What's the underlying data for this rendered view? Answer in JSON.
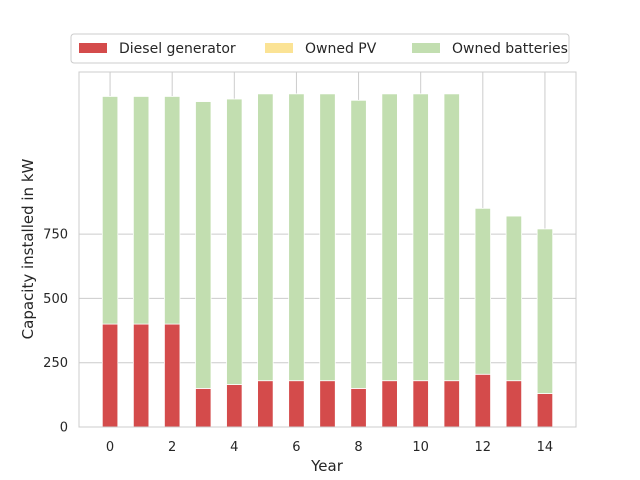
{
  "chart_data": {
    "type": "bar",
    "stacked": true,
    "title": "",
    "xlabel": "Year",
    "ylabel": "Capacity installed in kW",
    "x": [
      0,
      1,
      2,
      3,
      4,
      5,
      6,
      7,
      8,
      9,
      10,
      11,
      12,
      13,
      14
    ],
    "x_ticks": [
      "0",
      "2",
      "4",
      "6",
      "8",
      "10",
      "12",
      "14"
    ],
    "y_ticks": [
      "0",
      "250",
      "500",
      "750"
    ],
    "ylim": [
      0,
      1380
    ],
    "grid": true,
    "legend_position": "top",
    "series": [
      {
        "name": "Diesel generator",
        "color": "#d44b4b",
        "values": [
          400,
          400,
          400,
          150,
          165,
          180,
          180,
          180,
          150,
          180,
          180,
          180,
          205,
          180,
          130
        ]
      },
      {
        "name": "Owned PV",
        "color": "#fbe395",
        "values": [
          0,
          0,
          0,
          0,
          0,
          0,
          0,
          0,
          0,
          0,
          0,
          0,
          0,
          0,
          0
        ]
      },
      {
        "name": "Owned batteries",
        "color": "#c2deb0",
        "values": [
          885,
          885,
          885,
          1115,
          1110,
          1115,
          1115,
          1115,
          1120,
          1115,
          1115,
          1115,
          645,
          640,
          640
        ]
      }
    ]
  }
}
